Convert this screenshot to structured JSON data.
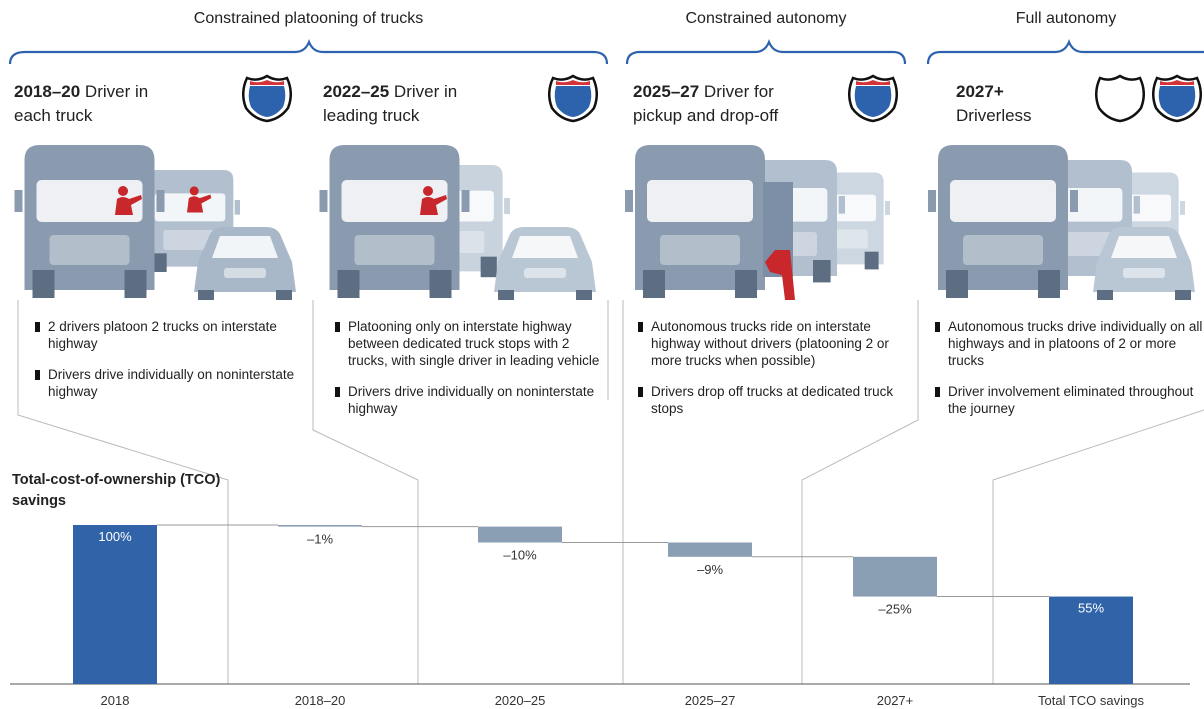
{
  "phases": [
    {
      "label": "Constrained platooning of trucks"
    },
    {
      "label": "Constrained autonomy"
    },
    {
      "label": "Full autonomy"
    }
  ],
  "stages": [
    {
      "years": "2018–20",
      "title": "Driver in each truck",
      "bullets": [
        "2 drivers platoon 2 trucks on interstate highway",
        "Drivers drive individually on noninterstate highway"
      ]
    },
    {
      "years": "2022–25",
      "title": "Driver in leading truck",
      "bullets": [
        "Platooning only on interstate highway between dedicated truck stops with 2 trucks, with single driver in leading vehicle",
        "Drivers drive individually on noninterstate highway"
      ]
    },
    {
      "years": "2025–27",
      "title": "Driver for pickup and drop-off",
      "bullets": [
        "Autonomous trucks ride on interstate highway without drivers (platooning 2 or more trucks when possible)",
        "Drivers drop off trucks at dedicated truck stops"
      ]
    },
    {
      "years": "2027+",
      "title": "Driverless",
      "bullets": [
        "Autonomous trucks drive individually on all highways and in platoons of 2 or more trucks",
        "Driver involvement eliminated throughout the journey"
      ]
    }
  ],
  "chart_data": {
    "type": "waterfall",
    "title": "Total-cost-of-ownership (TCO) savings",
    "categories": [
      "2018",
      "2018–20",
      "2020–25",
      "2025–27",
      "2027+",
      "Total TCO savings"
    ],
    "values": [
      100,
      -1,
      -10,
      -9,
      -25,
      55
    ],
    "value_labels": [
      "100%",
      "–1%",
      "–10%",
      "–9%",
      "–25%",
      "55%"
    ],
    "colors": [
      "#3163a8",
      "#8a9fb4",
      "#8a9fb4",
      "#8a9fb4",
      "#8a9fb4",
      "#3163a8"
    ]
  }
}
